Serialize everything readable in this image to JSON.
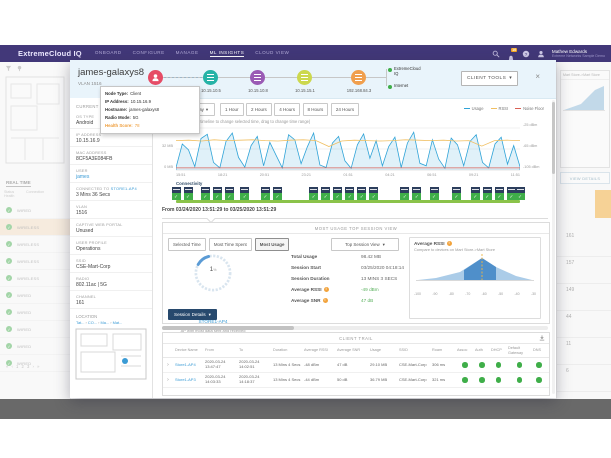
{
  "page": {
    "nav": {
      "brand": "ExtremeCloud IQ",
      "items": [
        "ONBOARD",
        "CONFIGURE",
        "MANAGE",
        "ML INSIGHTS",
        "CLOUD VIEW"
      ],
      "active_item": "ML INSIGHTS",
      "notification_count": "10",
      "user_name": "Mathew Edwards",
      "user_subtitle": "Extreme Networks Sample Demo"
    },
    "background_left": {
      "tab": "REAL TIME",
      "col_status": "Status Health",
      "col_connection": "Connection",
      "rows": [
        {
          "label": "WIRED",
          "highlight": false
        },
        {
          "label": "WIRELESS",
          "highlight": true
        },
        {
          "label": "WIRELESS",
          "highlight": false
        },
        {
          "label": "WIRELESS",
          "highlight": false
        },
        {
          "label": "WIRELESS",
          "highlight": false
        },
        {
          "label": "WIRED",
          "highlight": false
        },
        {
          "label": "WIRED",
          "highlight": false
        },
        {
          "label": "WIRED",
          "highlight": false
        },
        {
          "label": "WIRED",
          "highlight": false
        },
        {
          "label": "WIRED",
          "highlight": false
        }
      ],
      "pager": "« ‹ 1 2 3 › »"
    },
    "background_right": {
      "title": "Mart Store->Mart Store",
      "view_details": "VIEW DETAILS",
      "rows": [
        "161",
        "157",
        "149",
        "44",
        "11",
        "6"
      ]
    },
    "modal": {
      "title": "james-galaxys8",
      "vlan": "VLAN 1516",
      "client_tools": "CLIENT TOOLS",
      "topology": {
        "nodes": [
          {
            "name": "client",
            "ip": "10.15.16.9",
            "color": "#e64c66"
          },
          {
            "name": "switch",
            "ip": "10.15.10.5",
            "color": "#26b3a7"
          },
          {
            "name": "router",
            "ip": "10.15.10.8",
            "color": "#9a5bb5"
          },
          {
            "name": "firewall",
            "ip": "10.15.15.1",
            "color": "#ccd84e"
          },
          {
            "name": "gateway",
            "ip": "192.168.84.3",
            "color": "#f09f4e"
          }
        ],
        "endpoints": [
          {
            "label": "ExtremeCloud IQ"
          },
          {
            "label": "Internet"
          }
        ]
      },
      "tooltip": {
        "rows": [
          {
            "label": "Node Type:",
            "value": "Client",
            "accent": false
          },
          {
            "label": "IP Address:",
            "value": "10.15.16.9",
            "accent": false
          },
          {
            "label": "Hostname:",
            "value": "james-galaxys8",
            "accent": false
          },
          {
            "label": "Radio Mode:",
            "value": "5G",
            "accent": false
          },
          {
            "label": "Health Score:",
            "value": "78",
            "accent": true
          }
        ]
      },
      "sidebar": {
        "section": "CURRENT CONNECTION",
        "fields": [
          {
            "label": "OS TYPE",
            "value": "Android"
          },
          {
            "label": "IP ADDRESS",
            "value": "10.15.16.9"
          },
          {
            "label": "MAC ADDRESS",
            "value": "8CF5A3E084FB"
          },
          {
            "label": "USER",
            "value": "james",
            "value_link": true
          },
          {
            "label": "CONNECTED TO",
            "link": "STORE1-AP4",
            "value": "3 Mins 36 Secs"
          },
          {
            "label": "VLAN",
            "value": "1516"
          },
          {
            "label": "CAPTIVE WEB PORTAL",
            "value": "Unused"
          },
          {
            "label": "USER PROFILE",
            "value": "Operations"
          },
          {
            "label": "SSID",
            "value": "CSE-Mart-Corp"
          },
          {
            "label": "RADIO",
            "value": "802.11ac | 5G"
          },
          {
            "label": "CHANNEL",
            "value": "161"
          }
        ],
        "location_label": "LOCATION",
        "location_path": [
          "Tat...",
          "CO...",
          "Ma...",
          "Mat..."
        ]
      },
      "timebar": {
        "range_label": "Time Range:",
        "range_value": "Day",
        "buttons": [
          "1 Hour",
          "2 Hours",
          "4 Hours",
          "8 Hours",
          "24 Hours"
        ],
        "hint": "Usage (Click timeline to change selected time, drag to change time range)"
      },
      "usage_chart": {
        "legend": [
          {
            "label": "Usage",
            "color": "#2fa3d7"
          },
          {
            "label": "RSSI",
            "color": "#f0bf62"
          },
          {
            "label": "Noise Floor",
            "color": "#d96055"
          }
        ],
        "y_left": [
          "64 MB",
          "32 MB",
          "0 MB"
        ],
        "y_right": [
          "-25 dBm",
          "-65 dBm",
          "-105 dBm"
        ],
        "x_ticks": [
          "15:51",
          "18:21",
          "20:51",
          "23:21",
          "01:51",
          "04:21",
          "06:51",
          "09:21",
          "11:51"
        ],
        "usage_series": [
          6,
          62,
          48,
          8,
          75,
          85,
          18,
          5,
          68,
          88,
          30,
          7,
          58,
          80,
          10,
          66,
          35,
          5,
          84,
          72,
          15,
          55,
          88,
          12,
          6,
          64,
          80,
          22,
          4,
          60,
          86,
          28,
          70,
          10,
          56,
          78,
          6,
          64,
          90,
          16,
          10,
          72,
          26,
          4,
          76,
          60,
          10,
          68,
          84,
          18,
          5,
          62,
          78,
          14,
          58,
          8
        ],
        "rssi_series": [
          70,
          71,
          69,
          72,
          70,
          71,
          72,
          70,
          69,
          71,
          72,
          70,
          56,
          69,
          71,
          70,
          69,
          70,
          72,
          71,
          70,
          71,
          69,
          70,
          57,
          70,
          71,
          70
        ],
        "noise_level": 5
      },
      "connectivity": {
        "label": "Connectivity",
        "marker_positions_pct": [
          0,
          3.5,
          8.5,
          12,
          15.5,
          20,
          26,
          29.5,
          40,
          43.5,
          47,
          50.5,
          54,
          57.5,
          66.5,
          70,
          75,
          81.5,
          87,
          90.5,
          94,
          97.5,
          100
        ]
      },
      "range_summary": "From 03/24/2020 13:51:29 to 03/25/2020 13:51:29",
      "session": {
        "header": "MOST USAGE TOP SESSION VIEW",
        "tabs": [
          "Selected Time",
          "Most Time Spent",
          "Most Usage"
        ],
        "active_tab": "Most Usage",
        "view_dropdown": "Top Session View",
        "gauge": {
          "value": "1",
          "unit": "%",
          "link": "STORE1-AP4",
          "caption": "AP with most data sent and received"
        },
        "stats": [
          {
            "label": "Total Usage",
            "value": "98.42 MB",
            "warn": false,
            "positive": false
          },
          {
            "label": "Session Start",
            "value": "03/25/2020 04:18:14",
            "warn": false,
            "positive": false
          },
          {
            "label": "Session Duration",
            "value": "13 MINS 3 SECS",
            "warn": false,
            "positive": false
          },
          {
            "label": "Average RSSI",
            "value": "-49 dBm",
            "warn": true,
            "positive": true
          },
          {
            "label": "Average SNR",
            "value": "47 dB",
            "warn": true,
            "positive": true
          }
        ],
        "details_button": "Session Details",
        "rssi_card": {
          "title": "Average RSSI",
          "subtitle": "Compare to devices on Mart Store->Mart Store",
          "ticks": [
            "-100",
            "-90",
            "-80",
            "-70",
            "-60",
            "-50",
            "-40",
            "-30"
          ]
        }
      },
      "client_trail": {
        "header": "CLIENT TRAIL",
        "columns": [
          "Device Name",
          "From",
          "To",
          "Duration",
          "Average RSSI",
          "Average SNR",
          "Usage",
          "SSID",
          "Roam",
          "Assoc",
          "Auth",
          "DHCP",
          "Default Gateway",
          "DNS"
        ],
        "rows": [
          {
            "device": "Store1-AP4",
            "from_date": "2020-03-24",
            "from_time": "13:47:47",
            "to_date": "2020-03-24",
            "to_time": "14:02:51",
            "duration": "13 Mins 4 Secs",
            "rssi": "-48 dBm",
            "snr": "47 dB",
            "usage": "29.10 MB",
            "ssid": "CSE-Mart-Corp",
            "roam": "306 ms"
          },
          {
            "device": "Store1-AP3",
            "from_date": "2020-03-24",
            "from_time": "14:03:33",
            "to_date": "2020-03-24",
            "to_time": "14:18:37",
            "duration": "13 Mins 4 Secs",
            "rssi": "-44 dBm",
            "snr": "50 dB",
            "usage": "36.79 MB",
            "ssid": "CSE-Mart-Corp",
            "roam": "321 ms"
          }
        ]
      }
    }
  }
}
